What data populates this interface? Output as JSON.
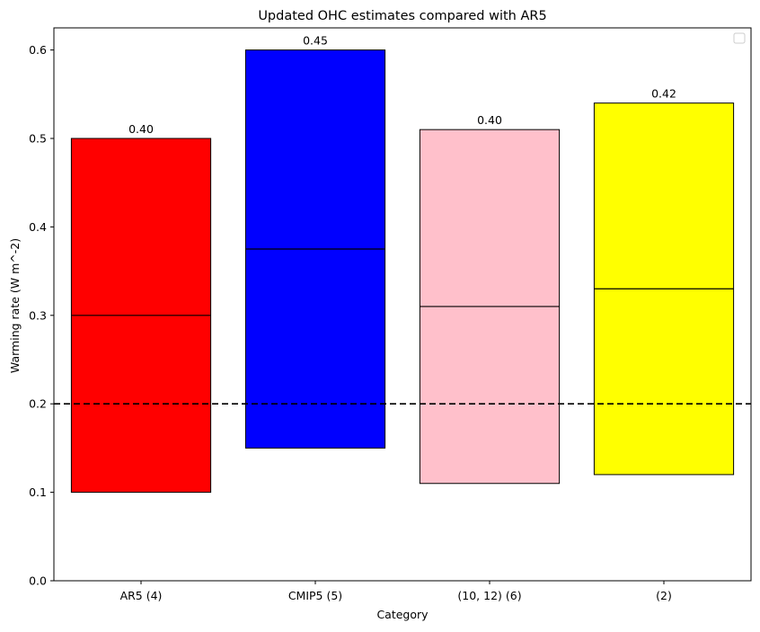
{
  "chart_data": {
    "type": "bar",
    "title": "Updated OHC estimates compared with AR5",
    "xlabel": "Category",
    "ylabel": "Warming rate (W m^-2)",
    "categories": [
      "AR5 (4)",
      "CMIP5 (5)",
      "(10, 12) (6)",
      "(2)"
    ],
    "bottoms": [
      0.1,
      0.15,
      0.11,
      0.12
    ],
    "tops": [
      0.5,
      0.6,
      0.51,
      0.54
    ],
    "medians": [
      0.3,
      0.375,
      0.31,
      0.33
    ],
    "value_labels": [
      "0.40",
      "0.45",
      "0.40",
      "0.42"
    ],
    "colors": [
      "#ff0000",
      "#0000ff",
      "#ffc0cb",
      "#ffff00"
    ],
    "reference_line": 0.2,
    "ylim": [
      0,
      0.625
    ],
    "yticks": [
      "0.0",
      "0.1",
      "0.2",
      "0.3",
      "0.4",
      "0.5",
      "0.6"
    ],
    "grid": false,
    "legend": {
      "placement": "top-right",
      "entries": []
    }
  }
}
